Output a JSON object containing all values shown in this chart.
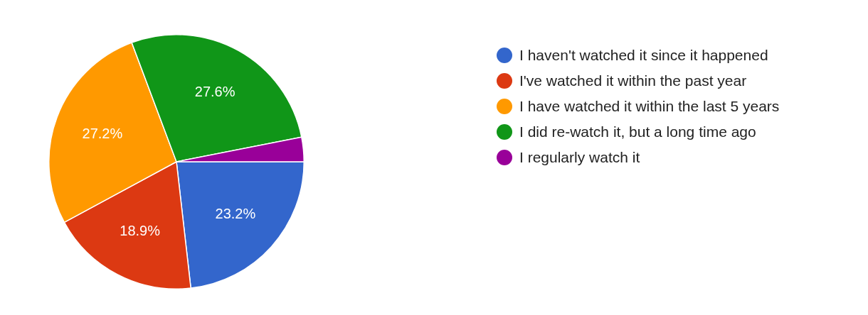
{
  "chart_data": {
    "type": "pie",
    "categories": [
      "I haven't watched it since it happened",
      "I've watched it within the past year",
      "I have watched it within the last 5 years",
      "I did re-watch it, but a long time ago",
      "I regularly watch it"
    ],
    "values": [
      23.2,
      18.9,
      27.2,
      27.6,
      3.1
    ],
    "colors": [
      "#3366cc",
      "#dc3912",
      "#ff9900",
      "#109618",
      "#990099"
    ],
    "value_labels": [
      "23.2%",
      "18.9%",
      "27.2%",
      "27.6%",
      null
    ],
    "legend": "right"
  }
}
